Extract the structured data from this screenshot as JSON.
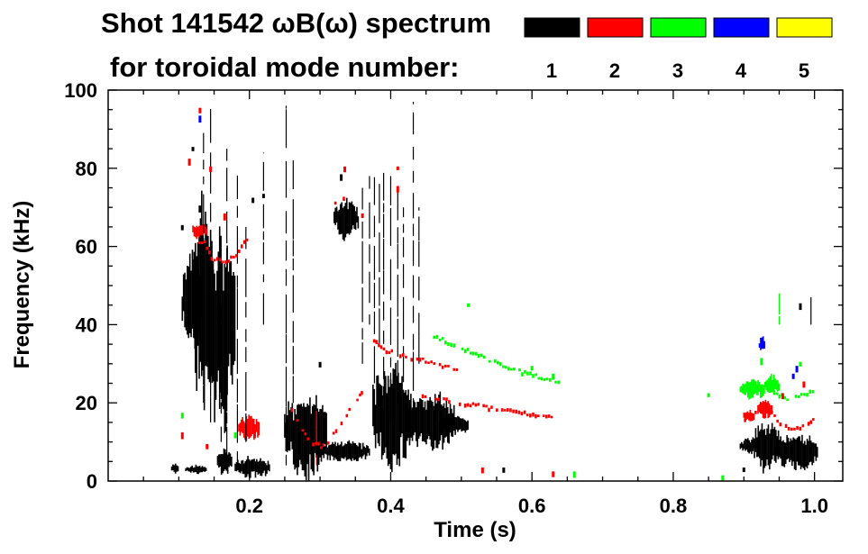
{
  "chart_data": {
    "type": "heatmap",
    "title_line1": "Shot 141542 ωB(ω) spectrum",
    "title_line2": "for toroidal mode number:",
    "xlabel": "Time (s)",
    "ylabel": "Frequency (kHz)",
    "xlim": [
      0.0,
      1.04
    ],
    "ylim": [
      0,
      100
    ],
    "x_ticks": [
      {
        "value": 0.2,
        "label": "0.2"
      },
      {
        "value": 0.4,
        "label": "0.4"
      },
      {
        "value": 0.6,
        "label": "0.6"
      },
      {
        "value": 0.8,
        "label": "0.8"
      },
      {
        "value": 1.0,
        "label": "1.0"
      }
    ],
    "y_ticks": [
      {
        "value": 0,
        "label": "0"
      },
      {
        "value": 20,
        "label": "20"
      },
      {
        "value": 40,
        "label": "40"
      },
      {
        "value": 60,
        "label": "60"
      },
      {
        "value": 80,
        "label": "80"
      },
      {
        "value": 100,
        "label": "100"
      }
    ],
    "legend": {
      "placement": "top-right",
      "entries": [
        {
          "label": "1",
          "color": "#000000"
        },
        {
          "label": "2",
          "color": "#ff0000"
        },
        {
          "label": "3",
          "color": "#00ff00"
        },
        {
          "label": "4",
          "color": "#0000ff"
        },
        {
          "label": "5",
          "color": "#ffff00"
        }
      ]
    },
    "blobs": [
      {
        "n": 1,
        "t0": 0.105,
        "t1": 0.135,
        "f0": 35,
        "f1": 58
      },
      {
        "n": 1,
        "t0": 0.12,
        "t1": 0.15,
        "f0": 20,
        "f1": 70
      },
      {
        "n": 1,
        "t0": 0.14,
        "t1": 0.18,
        "f0": 15,
        "f1": 62
      },
      {
        "n": 1,
        "t0": 0.09,
        "t1": 0.1,
        "f0": 2,
        "f1": 5
      },
      {
        "n": 1,
        "t0": 0.11,
        "t1": 0.14,
        "f0": 2,
        "f1": 4
      },
      {
        "n": 1,
        "t0": 0.155,
        "t1": 0.175,
        "f0": 2,
        "f1": 8
      },
      {
        "n": 1,
        "t0": 0.18,
        "t1": 0.23,
        "f0": 1,
        "f1": 6
      },
      {
        "n": 1,
        "t0": 0.25,
        "t1": 0.31,
        "f0": 2,
        "f1": 22
      },
      {
        "n": 1,
        "t0": 0.3,
        "t1": 0.37,
        "f0": 5,
        "f1": 10
      },
      {
        "n": 1,
        "t0": 0.32,
        "t1": 0.355,
        "f0": 62,
        "f1": 72
      },
      {
        "n": 1,
        "t0": 0.375,
        "t1": 0.43,
        "f0": 4,
        "f1": 29
      },
      {
        "n": 1,
        "t0": 0.42,
        "t1": 0.49,
        "f0": 8,
        "f1": 22
      },
      {
        "n": 1,
        "t0": 0.47,
        "t1": 0.51,
        "f0": 12,
        "f1": 17
      },
      {
        "n": 1,
        "t0": 0.895,
        "t1": 0.92,
        "f0": 7,
        "f1": 11
      },
      {
        "n": 1,
        "t0": 0.915,
        "t1": 0.95,
        "f0": 3,
        "f1": 15
      },
      {
        "n": 1,
        "t0": 0.945,
        "t1": 1.005,
        "f0": 3,
        "f1": 12
      },
      {
        "n": 2,
        "t0": 0.12,
        "t1": 0.14,
        "f0": 62,
        "f1": 66
      },
      {
        "n": 2,
        "t0": 0.185,
        "t1": 0.215,
        "f0": 10,
        "f1": 17
      },
      {
        "n": 2,
        "t0": 0.9,
        "t1": 0.915,
        "f0": 15,
        "f1": 18
      },
      {
        "n": 2,
        "t0": 0.92,
        "t1": 0.94,
        "f0": 16,
        "f1": 21
      },
      {
        "n": 3,
        "t0": 0.895,
        "t1": 0.93,
        "f0": 21,
        "f1": 26
      },
      {
        "n": 3,
        "t0": 0.93,
        "t1": 0.95,
        "f0": 22,
        "f1": 27
      },
      {
        "n": 4,
        "t0": 0.922,
        "t1": 0.93,
        "f0": 33,
        "f1": 37
      }
    ],
    "streaks": [
      {
        "n": 1,
        "t": 0.252,
        "f0": 4,
        "f1": 96
      },
      {
        "n": 1,
        "t": 0.262,
        "f0": 20,
        "f1": 82
      },
      {
        "n": 1,
        "t": 0.183,
        "f0": 5,
        "f1": 80
      },
      {
        "n": 1,
        "t": 0.168,
        "f0": 6,
        "f1": 85
      },
      {
        "n": 1,
        "t": 0.195,
        "f0": 10,
        "f1": 65
      },
      {
        "n": 1,
        "t": 0.22,
        "f0": 40,
        "f1": 84
      },
      {
        "n": 1,
        "t": 0.16,
        "f0": 10,
        "f1": 55
      },
      {
        "n": 1,
        "t": 0.135,
        "f0": 20,
        "f1": 90
      },
      {
        "n": 1,
        "t": 0.145,
        "f0": 15,
        "f1": 98
      },
      {
        "n": 1,
        "t": 0.39,
        "f0": 10,
        "f1": 80
      },
      {
        "n": 1,
        "t": 0.4,
        "f0": 15,
        "f1": 78
      },
      {
        "n": 1,
        "t": 0.41,
        "f0": 20,
        "f1": 75
      },
      {
        "n": 1,
        "t": 0.418,
        "f0": 18,
        "f1": 70
      },
      {
        "n": 1,
        "t": 0.432,
        "f0": 12,
        "f1": 97
      },
      {
        "n": 1,
        "t": 0.44,
        "f0": 30,
        "f1": 70
      },
      {
        "n": 1,
        "t": 0.36,
        "f0": 30,
        "f1": 75
      },
      {
        "n": 1,
        "t": 0.377,
        "f0": 25,
        "f1": 80
      },
      {
        "n": 1,
        "t": 0.37,
        "f0": 40,
        "f1": 78
      },
      {
        "n": 1,
        "t": 0.384,
        "f0": 35,
        "f1": 76
      },
      {
        "n": 1,
        "t": 0.995,
        "f0": 40,
        "f1": 47
      },
      {
        "n": 2,
        "t": 0.295,
        "f0": 4,
        "f1": 18
      },
      {
        "n": 3,
        "t": 0.95,
        "f0": 40,
        "f1": 48
      }
    ],
    "tracks": [
      {
        "n": 2,
        "points": [
          [
            0.12,
            61
          ],
          [
            0.135,
            61
          ],
          [
            0.145,
            57
          ],
          [
            0.165,
            56
          ],
          [
            0.18,
            58
          ],
          [
            0.195,
            62
          ],
          [
            0.2,
            64
          ]
        ]
      },
      {
        "n": 2,
        "points": [
          [
            0.255,
            20
          ],
          [
            0.27,
            14
          ],
          [
            0.285,
            10
          ],
          [
            0.3,
            9
          ],
          [
            0.31,
            10
          ],
          [
            0.325,
            14
          ],
          [
            0.34,
            18
          ],
          [
            0.355,
            22
          ],
          [
            0.36,
            23
          ]
        ]
      },
      {
        "n": 2,
        "points": [
          [
            0.32,
            71
          ],
          [
            0.34,
            74
          ]
        ]
      },
      {
        "n": 2,
        "points": [
          [
            0.375,
            36
          ],
          [
            0.385,
            34
          ],
          [
            0.4,
            33
          ],
          [
            0.42,
            32
          ],
          [
            0.44,
            31
          ],
          [
            0.46,
            30
          ],
          [
            0.48,
            29
          ],
          [
            0.5,
            28
          ]
        ]
      },
      {
        "n": 2,
        "points": [
          [
            0.44,
            22
          ],
          [
            0.47,
            21
          ],
          [
            0.5,
            20
          ],
          [
            0.53,
            19
          ],
          [
            0.56,
            18
          ],
          [
            0.6,
            17
          ],
          [
            0.63,
            16
          ]
        ]
      },
      {
        "n": 2,
        "points": [
          [
            0.9,
            16
          ],
          [
            0.93,
            19
          ],
          [
            0.95,
            15
          ],
          [
            0.97,
            13
          ],
          [
            0.99,
            15
          ],
          [
            1.0,
            16
          ]
        ]
      },
      {
        "n": 3,
        "points": [
          [
            0.46,
            37
          ],
          [
            0.5,
            34
          ],
          [
            0.55,
            30
          ],
          [
            0.6,
            27
          ],
          [
            0.64,
            25
          ]
        ]
      },
      {
        "n": 3,
        "points": [
          [
            0.9,
            22
          ],
          [
            0.93,
            24
          ],
          [
            0.96,
            21
          ],
          [
            0.98,
            22
          ],
          [
            1.0,
            23
          ]
        ]
      }
    ],
    "specks": [
      {
        "n": 1,
        "t": 0.105,
        "f": 65
      },
      {
        "n": 1,
        "t": 0.12,
        "f": 85
      },
      {
        "n": 1,
        "t": 0.13,
        "f": 70
      },
      {
        "n": 1,
        "t": 0.205,
        "f": 72
      },
      {
        "n": 1,
        "t": 0.3,
        "f": 30
      },
      {
        "n": 1,
        "t": 0.22,
        "f": 73
      },
      {
        "n": 1,
        "t": 0.33,
        "f": 78
      },
      {
        "n": 1,
        "t": 0.35,
        "f": 8
      },
      {
        "n": 1,
        "t": 0.56,
        "f": 3
      },
      {
        "n": 1,
        "t": 0.9,
        "f": 3
      },
      {
        "n": 1,
        "t": 0.98,
        "f": 45
      },
      {
        "n": 2,
        "t": 0.13,
        "f": 95
      },
      {
        "n": 2,
        "t": 0.115,
        "f": 82
      },
      {
        "n": 2,
        "t": 0.145,
        "f": 80
      },
      {
        "n": 2,
        "t": 0.165,
        "f": 68
      },
      {
        "n": 2,
        "t": 0.105,
        "f": 12
      },
      {
        "n": 2,
        "t": 0.14,
        "f": 9
      },
      {
        "n": 2,
        "t": 0.335,
        "f": 80
      },
      {
        "n": 2,
        "t": 0.41,
        "f": 80
      },
      {
        "n": 2,
        "t": 0.53,
        "f": 3
      },
      {
        "n": 2,
        "t": 0.63,
        "f": 2
      },
      {
        "n": 2,
        "t": 0.955,
        "f": 22
      },
      {
        "n": 2,
        "t": 0.985,
        "f": 25
      },
      {
        "n": 2,
        "t": 0.41,
        "f": 75
      },
      {
        "n": 2,
        "t": 0.36,
        "f": 68
      },
      {
        "n": 3,
        "t": 0.105,
        "f": 17
      },
      {
        "n": 3,
        "t": 0.18,
        "f": 12
      },
      {
        "n": 3,
        "t": 0.51,
        "f": 45
      },
      {
        "n": 3,
        "t": 0.6,
        "f": 29
      },
      {
        "n": 3,
        "t": 0.63,
        "f": 27
      },
      {
        "n": 3,
        "t": 0.66,
        "f": 2
      },
      {
        "n": 3,
        "t": 0.85,
        "f": 22
      },
      {
        "n": 3,
        "t": 0.87,
        "f": 1
      },
      {
        "n": 3,
        "t": 0.98,
        "f": 30
      },
      {
        "n": 3,
        "t": 0.925,
        "f": 31
      },
      {
        "n": 4,
        "t": 0.13,
        "f": 93
      },
      {
        "n": 4,
        "t": 0.97,
        "f": 27
      },
      {
        "n": 4,
        "t": 0.975,
        "f": 29
      }
    ]
  }
}
